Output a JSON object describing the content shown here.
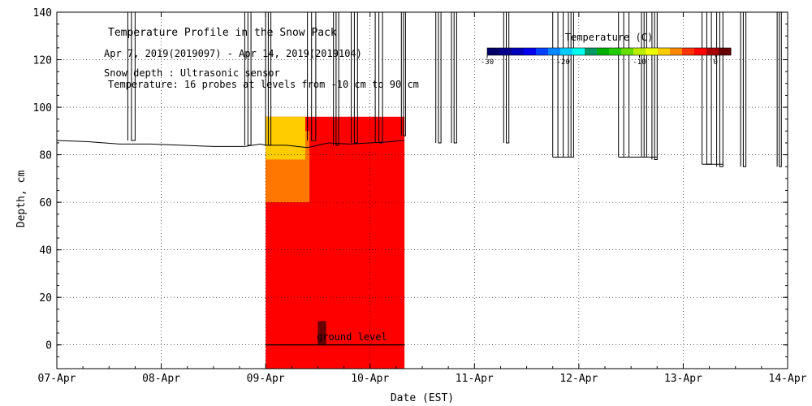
{
  "chart_data": {
    "type": "heatmap",
    "title": "Temperature Profile in the Snow Pack",
    "subtitle": "Apr  7, 2019(2019097) - Apr 14, 2019(2019104)",
    "annotations": [
      "Snow depth : Ultrasonic sensor",
      "Temperature: 16 probes at levels from -10 cm to 90 cm"
    ],
    "ground_label": "ground level",
    "xlabel": "Date (EST)",
    "ylabel": "Depth, cm",
    "x_ticks": [
      "07-Apr",
      "08-Apr",
      "09-Apr",
      "10-Apr",
      "11-Apr",
      "12-Apr",
      "13-Apr",
      "14-Apr"
    ],
    "xlim_days": [
      0,
      7
    ],
    "ylim": [
      -10,
      140
    ],
    "y_ticks": [
      0,
      20,
      40,
      60,
      80,
      100,
      120,
      140
    ],
    "grid": true,
    "colorbar": {
      "title": "Temperature (C)",
      "range": [
        -30,
        2
      ],
      "tick_values": [
        -30,
        -20,
        -10,
        0
      ],
      "tick_labels": [
        "-30",
        "-20",
        "-10",
        "0"
      ],
      "colors": [
        "#000066",
        "#00008c",
        "#0000bb",
        "#0000ee",
        "#0040ff",
        "#0088ff",
        "#00ccff",
        "#00ffee",
        "#009966",
        "#00b000",
        "#22cc00",
        "#66dd00",
        "#bbee00",
        "#eeff00",
        "#ffcc00",
        "#ff8800",
        "#ff3300",
        "#ff0000",
        "#aa0000",
        "#660000"
      ]
    },
    "temperature_regions": [
      {
        "label": "0 to -2 C",
        "color": "#ff0000",
        "x": [
          2.0,
          3.33
        ],
        "depth": [
          -10,
          96
        ]
      },
      {
        "label": "-4 C",
        "color": "#ff7700",
        "x": [
          2.0,
          2.42
        ],
        "depth": [
          60,
          90
        ]
      },
      {
        "label": "-6 C",
        "color": "#ffcc00",
        "x": [
          2.0,
          2.38
        ],
        "depth": [
          78,
          96
        ]
      },
      {
        "label": "0 C probe",
        "color": "#660000",
        "x": [
          2.5,
          2.58
        ],
        "depth": [
          0,
          10
        ]
      }
    ],
    "ground_line": {
      "x": [
        2.0,
        3.33
      ],
      "depth": 0
    },
    "snow_depth_series": {
      "x": [
        0,
        0.3,
        0.6,
        0.9,
        1.2,
        1.5,
        1.8,
        1.95,
        2.0,
        2.2,
        2.4,
        2.6,
        2.8,
        3.0,
        3.2,
        3.3,
        3.33
      ],
      "y": [
        86,
        85.5,
        84.5,
        84.5,
        84,
        83.5,
        83.5,
        84.5,
        84,
        84,
        83,
        85,
        84.5,
        85,
        85.5,
        86,
        86
      ]
    },
    "sensor_dropouts": [
      {
        "x": [
          0.68,
          0.75
        ],
        "low": 86
      },
      {
        "x": [
          1.8,
          1.86
        ],
        "low": 84
      },
      {
        "x": [
          2.0,
          2.05
        ],
        "low": 84
      },
      {
        "x": [
          2.4,
          2.48
        ],
        "low": 86
      },
      {
        "x": [
          2.65,
          2.7
        ],
        "low": 84
      },
      {
        "x": [
          2.82,
          2.88
        ],
        "low": 85
      },
      {
        "x": [
          3.05,
          3.12
        ],
        "low": 85
      },
      {
        "x": [
          3.3,
          3.34
        ],
        "low": 88
      },
      {
        "x": [
          3.63,
          3.68
        ],
        "low": 85
      },
      {
        "x": [
          3.78,
          3.83
        ],
        "low": 85
      },
      {
        "x": [
          4.28,
          4.33
        ],
        "low": 85
      },
      {
        "x": [
          4.75,
          4.85
        ],
        "low": 79
      },
      {
        "x": [
          4.9,
          4.95
        ],
        "low": 79
      },
      {
        "x": [
          5.38,
          5.48
        ],
        "low": 79
      },
      {
        "x": [
          5.6,
          5.65
        ],
        "low": 79
      },
      {
        "x": [
          5.7,
          5.75
        ],
        "low": 78
      },
      {
        "x": [
          6.18,
          6.27
        ],
        "low": 76
      },
      {
        "x": [
          6.32,
          6.38
        ],
        "low": 75
      },
      {
        "x": [
          6.55,
          6.6
        ],
        "low": 75
      },
      {
        "x": [
          6.9,
          6.94
        ],
        "low": 75
      }
    ],
    "late_snow_depth_segments": [
      {
        "x": [
          4.75,
          4.95
        ],
        "y": 79
      },
      {
        "x": [
          5.38,
          5.75
        ],
        "y": 79
      },
      {
        "x": [
          6.18,
          6.38
        ],
        "y": 76
      }
    ]
  }
}
